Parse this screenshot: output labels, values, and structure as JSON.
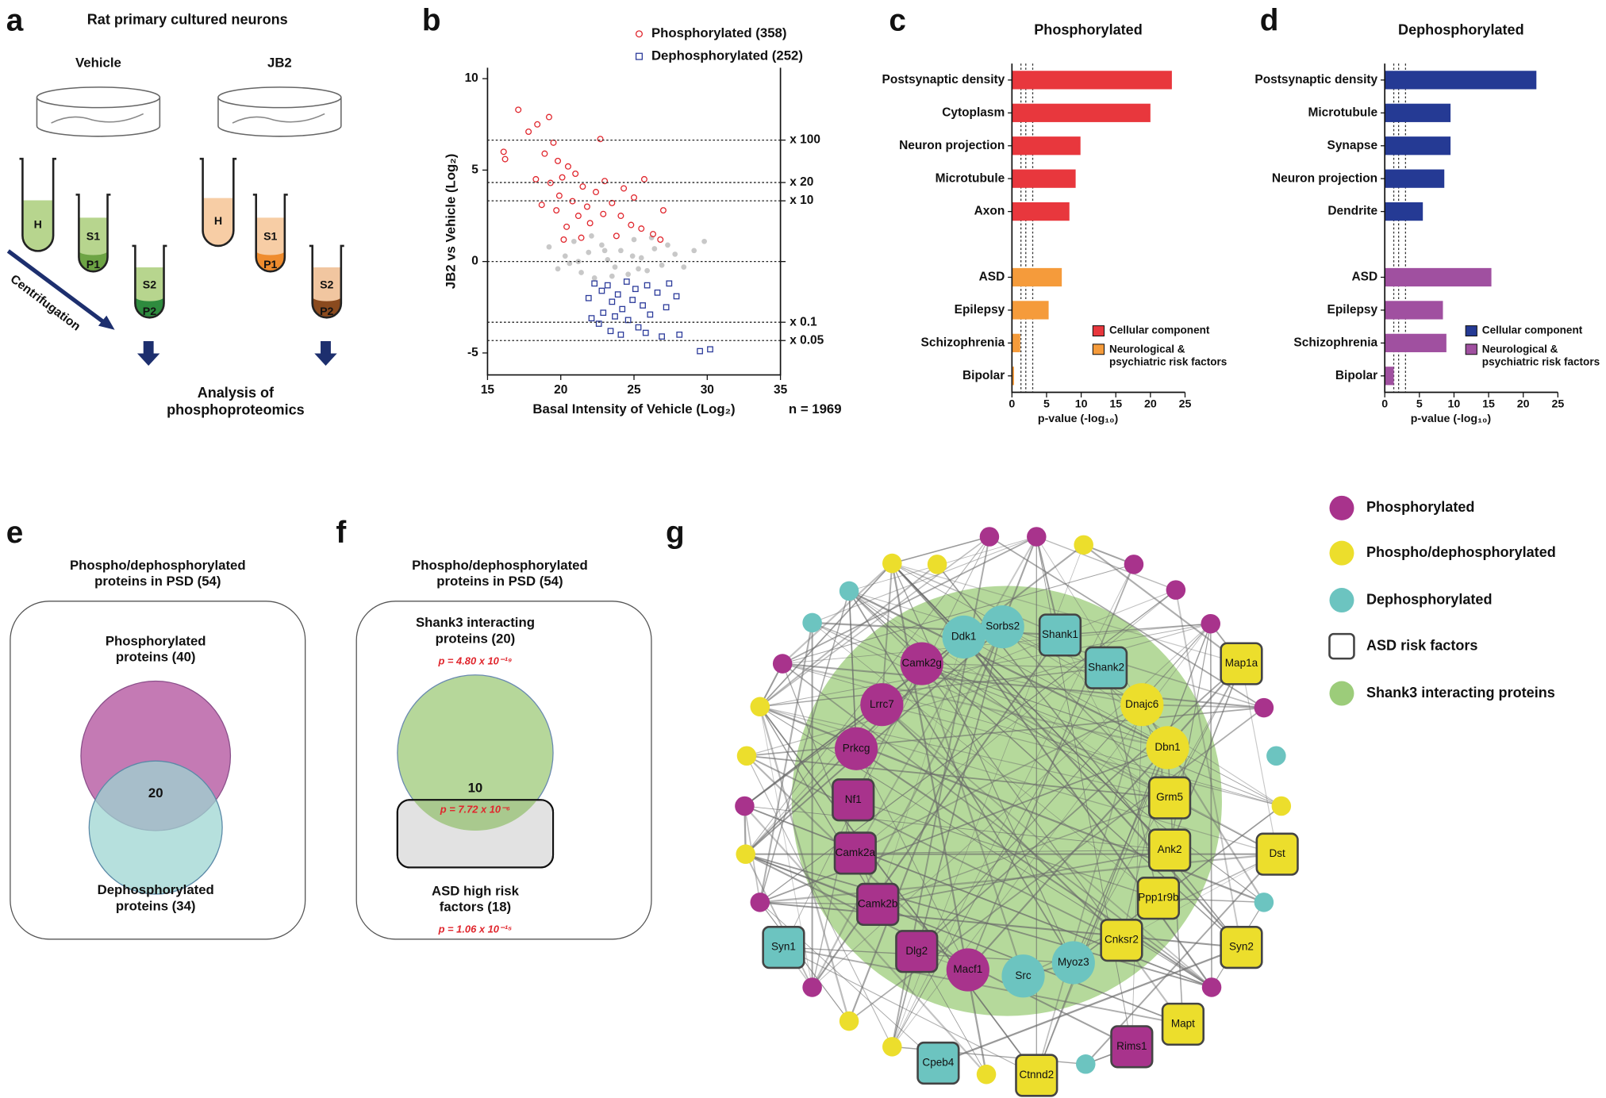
{
  "panel_labels": [
    "a",
    "b",
    "c",
    "d",
    "e",
    "f",
    "g"
  ],
  "schematic": {
    "title": "Rat primary cultured neurons",
    "groups": [
      "Vehicle",
      "JB2"
    ],
    "tube_labels": [
      [
        "H",
        "S1",
        "P1",
        "S2",
        "P2"
      ],
      [
        "H",
        "S1",
        "P1",
        "S2",
        "P2"
      ]
    ],
    "arrow_label": "Centrifugation",
    "result": "Analysis of\nphosphoproteomics"
  },
  "chart_data": [
    {
      "type": "scatter",
      "xlabel": "Basal Intensity of Vehicle (Log₂)",
      "ylabel": "JB2 vs Vehicle (Log₂)",
      "annotation": "n = 1969",
      "xlim": [
        15,
        35
      ],
      "xticks": [
        15,
        20,
        25,
        30,
        35
      ],
      "ylim": [
        -6.2,
        10.6
      ],
      "yticks": [
        -5,
        0,
        5,
        10
      ],
      "legend": "top",
      "hlines": [
        {
          "value": 6.64,
          "label": "x 100"
        },
        {
          "value": 4.32,
          "label": "x 20"
        },
        {
          "value": 3.32,
          "label": "x 10"
        },
        {
          "value": 0
        },
        {
          "value": -3.32,
          "label": "x 0.1"
        },
        {
          "value": -4.32,
          "label": "x 0.05"
        }
      ],
      "series": [
        {
          "color": "#c8c8c8",
          "marker": "dot",
          "x": [
            19.2,
            19.8,
            20.3,
            20.9,
            21.4,
            21.9,
            22.3,
            22.8,
            23.2,
            23.7,
            24.1,
            24.6,
            25.0,
            25.5,
            25.9,
            26.4,
            26.9,
            27.3,
            27.8,
            28.4,
            29.1,
            29.8,
            20.6,
            22.1,
            23.5,
            24.9,
            26.2,
            21.2,
            23.0,
            25.3
          ],
          "values": [
            0.8,
            -0.4,
            0.3,
            1.1,
            -0.6,
            0.5,
            -0.9,
            0.9,
            0.1,
            -0.3,
            0.6,
            -0.7,
            1.2,
            0.2,
            -0.5,
            0.7,
            -0.2,
            0.9,
            0.4,
            -0.3,
            0.6,
            1.1,
            -0.1,
            1.4,
            -0.8,
            0.3,
            1.3,
            0.0,
            0.6,
            -0.4
          ]
        },
        {
          "name": "Phosphorylated (358)",
          "color": "#e0262d",
          "marker": "circle",
          "x": [
            16.1,
            16.2,
            17.1,
            17.8,
            18.4,
            19.2,
            19.5,
            18.9,
            19.8,
            20.5,
            20.1,
            19.3,
            21.0,
            21.5,
            22.4,
            20.8,
            19.9,
            21.8,
            22.9,
            23.5,
            24.1,
            24.8,
            25.5,
            26.3,
            23.0,
            22.0,
            21.2,
            20.4,
            19.7,
            18.7,
            25.0,
            24.3,
            22.7,
            27.0,
            26.8,
            23.8,
            21.4,
            20.2,
            25.7,
            18.3
          ],
          "values": [
            6.0,
            5.6,
            8.3,
            7.1,
            7.5,
            7.9,
            6.5,
            5.9,
            5.5,
            5.2,
            4.6,
            4.3,
            4.8,
            4.1,
            3.8,
            3.3,
            3.6,
            3.0,
            2.6,
            3.2,
            2.5,
            2.0,
            1.8,
            1.5,
            4.4,
            2.1,
            2.5,
            1.9,
            2.8,
            3.1,
            3.5,
            4.0,
            6.7,
            2.8,
            1.2,
            1.4,
            1.3,
            1.2,
            4.5,
            4.5
          ]
        },
        {
          "name": "Dephosphorylated (252)",
          "color": "#2b3a9a",
          "marker": "square",
          "x": [
            22.3,
            22.8,
            23.2,
            23.9,
            24.5,
            25.1,
            25.9,
            26.6,
            27.4,
            23.5,
            24.2,
            24.9,
            25.6,
            22.9,
            23.7,
            24.6,
            26.1,
            27.2,
            22.6,
            23.4,
            24.1,
            25.3,
            26.9,
            28.1,
            29.5,
            30.2,
            21.9,
            22.1,
            25.8,
            27.9
          ],
          "values": [
            -1.2,
            -1.6,
            -1.3,
            -1.8,
            -1.1,
            -1.5,
            -1.3,
            -1.7,
            -1.2,
            -2.2,
            -2.6,
            -2.1,
            -2.4,
            -2.8,
            -3.0,
            -3.2,
            -2.9,
            -2.5,
            -3.4,
            -3.8,
            -4.0,
            -3.6,
            -4.1,
            -4.0,
            -4.9,
            -4.8,
            -2.0,
            -3.1,
            -3.9,
            -1.9
          ]
        }
      ]
    },
    {
      "type": "bar",
      "orientation": "horizontal",
      "title": "Phosphorylated",
      "xlabel": "p-value (-log₁₀)",
      "xlim": [
        0,
        25
      ],
      "xticks": [
        0,
        5,
        10,
        15,
        20,
        25
      ],
      "vlines": [
        1.3,
        2,
        3
      ],
      "legend": "lower right",
      "categories": [
        "Postsynaptic density",
        "Cytoplasm",
        "Neuron projection",
        "Microtubule",
        "Axon",
        null,
        "ASD",
        "Epilepsy",
        "Schizophrenia",
        "Bipolar"
      ],
      "series": [
        {
          "name": "Cellular component",
          "color": "#e8373d",
          "values": [
            23.1,
            20.0,
            9.9,
            9.2,
            8.3,
            null,
            null,
            null,
            null,
            null
          ]
        },
        {
          "name": "Neurological &\npsychiatric risk factors",
          "color": "#f59b3b",
          "values": [
            null,
            null,
            null,
            null,
            null,
            null,
            7.2,
            5.3,
            1.2,
            0.3
          ]
        }
      ]
    },
    {
      "type": "bar",
      "orientation": "horizontal",
      "title": "Dephosphorylated",
      "xlabel": "p-value (-log₁₀)",
      "xlim": [
        0,
        25
      ],
      "xticks": [
        0,
        5,
        10,
        15,
        20,
        25
      ],
      "vlines": [
        1.3,
        2,
        3
      ],
      "legend": "lower right",
      "categories": [
        "Postsynaptic density",
        "Microtubule",
        "Synapse",
        "Neuron projection",
        "Dendrite",
        null,
        "ASD",
        "Epilepsy",
        "Schizophrenia",
        "Bipolar"
      ],
      "series": [
        {
          "name": "Cellular component",
          "color": "#253a94",
          "values": [
            21.9,
            9.5,
            9.5,
            8.6,
            5.5,
            null,
            null,
            null,
            null,
            null
          ]
        },
        {
          "name": "Neurological &\npsychiatric risk factors",
          "color": "#a050a0",
          "values": [
            null,
            null,
            null,
            null,
            null,
            null,
            15.4,
            8.4,
            8.9,
            1.3
          ]
        }
      ]
    }
  ],
  "venn_e": {
    "title": "Phospho/dephosphorylated\nproteins in PSD (54)",
    "set_a": "Phosphorylated\nproteins (40)",
    "overlap": "20",
    "set_b": "Dephosphorylated\nproteins (34)"
  },
  "venn_f": {
    "title": "Phospho/dephosphorylated\nproteins in PSD (54)",
    "set_a": "Shank3 interacting\nproteins (20)",
    "p_a": "p = 4.80 x 10⁻¹⁹",
    "overlap": "10",
    "p_overlap": "p = 7.72 x 10⁻⁶",
    "set_b": "ASD high risk\nfactors (18)",
    "p_b": "p = 1.06 x 10⁻¹⁵"
  },
  "network": {
    "legend": [
      {
        "label": "Phosphorylated",
        "color": "#a8338c",
        "shape": "circle"
      },
      {
        "label": "Phospho/dephosphorylated",
        "color": "#ecde2c",
        "shape": "circle"
      },
      {
        "label": "Dephosphorylated",
        "color": "#6cc4c0",
        "shape": "circle"
      },
      {
        "label": "ASD risk factors",
        "color": "#ffffff",
        "shape": "square"
      },
      {
        "label": "Shank3 interacting proteins",
        "color": "#9ccc7a",
        "shape": "circle"
      }
    ],
    "nodes": [
      {
        "label": "Ddk1",
        "color": "#6cc4c0",
        "shape": "circle"
      },
      {
        "label": "Sorbs2",
        "color": "#6cc4c0",
        "shape": "circle"
      },
      {
        "label": "Shank1",
        "color": "#6cc4c0",
        "shape": "square"
      },
      {
        "label": "Shank2",
        "color": "#6cc4c0",
        "shape": "square"
      },
      {
        "label": "Camk2g",
        "color": "#a8338c",
        "shape": "circle"
      },
      {
        "label": "Lrrc7",
        "color": "#a8338c",
        "shape": "circle"
      },
      {
        "label": "Dnajc6",
        "color": "#ecde2c",
        "shape": "circle"
      },
      {
        "label": "Prkcg",
        "color": "#a8338c",
        "shape": "circle"
      },
      {
        "label": "Dbn1",
        "color": "#ecde2c",
        "shape": "circle"
      },
      {
        "label": "Nf1",
        "color": "#a8338c",
        "shape": "square"
      },
      {
        "label": "Grm5",
        "color": "#ecde2c",
        "shape": "square"
      },
      {
        "label": "Camk2a",
        "color": "#a8338c",
        "shape": "square"
      },
      {
        "label": "Ank2",
        "color": "#ecde2c",
        "shape": "square"
      },
      {
        "label": "Camk2b",
        "color": "#a8338c",
        "shape": "square"
      },
      {
        "label": "Ppp1r9b",
        "color": "#ecde2c",
        "shape": "square"
      },
      {
        "label": "Dlg2",
        "color": "#a8338c",
        "shape": "square"
      },
      {
        "label": "Cnksr2",
        "color": "#ecde2c",
        "shape": "square"
      },
      {
        "label": "Macf1",
        "color": "#a8338c",
        "shape": "circle"
      },
      {
        "label": "Myoz3",
        "color": "#6cc4c0",
        "shape": "circle"
      },
      {
        "label": "Src",
        "color": "#6cc4c0",
        "shape": "circle"
      },
      {
        "label": "Syn1",
        "color": "#6cc4c0",
        "shape": "square"
      },
      {
        "label": "Map1a",
        "color": "#ecde2c",
        "shape": "square"
      },
      {
        "label": "Dst",
        "color": "#ecde2c",
        "shape": "square"
      },
      {
        "label": "Syn2",
        "color": "#ecde2c",
        "shape": "square"
      },
      {
        "label": "Mapt",
        "color": "#ecde2c",
        "shape": "square"
      },
      {
        "label": "Rims1",
        "color": "#a8338c",
        "shape": "square"
      },
      {
        "label": "Cpeb4",
        "color": "#6cc4c0",
        "shape": "square"
      },
      {
        "label": "Ctnnd2",
        "color": "#ecde2c",
        "shape": "square"
      }
    ]
  }
}
